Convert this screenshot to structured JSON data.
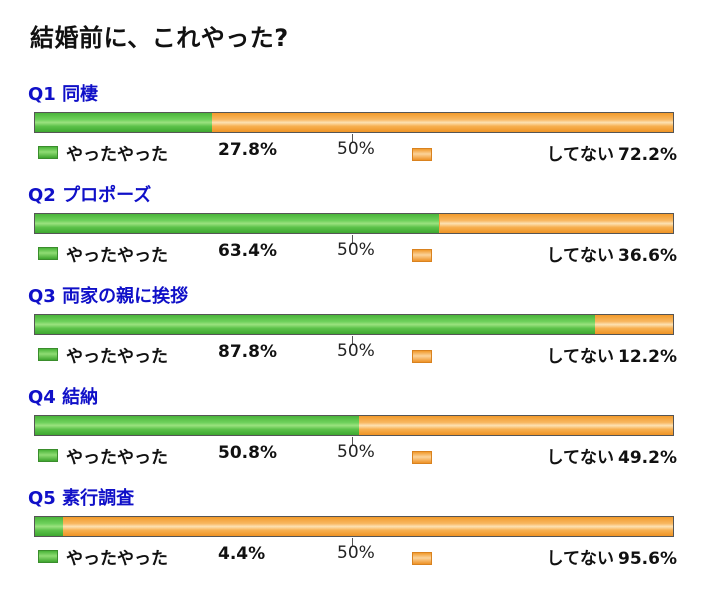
{
  "title": "結婚前に、これやった?",
  "legend": {
    "yes_label": "やったやった",
    "no_label": "してない",
    "mid_label": "50%"
  },
  "colors": {
    "yes": "#5cc24a",
    "no": "#f4a23a",
    "question": "#1010c8"
  },
  "chart_data": {
    "type": "bar",
    "orientation": "horizontal-stacked-100",
    "title": "結婚前に、これやった?",
    "categories": [
      "Q1 同棲",
      "Q2 プロポーズ",
      "Q3 両家の親に挨拶",
      "Q4 結納",
      "Q5 素行調査"
    ],
    "series": [
      {
        "name": "やったやった",
        "values": [
          27.8,
          63.4,
          87.8,
          50.8,
          4.4
        ]
      },
      {
        "name": "してない",
        "values": [
          72.2,
          36.6,
          12.2,
          49.2,
          95.6
        ]
      }
    ],
    "xlim": [
      0,
      100
    ],
    "ticks": [
      "50%"
    ]
  },
  "questions": [
    {
      "label": "Q1 同棲",
      "yes": "27.8%",
      "no": "72.2%"
    },
    {
      "label": "Q2 プロポーズ",
      "yes": "63.4%",
      "no": "36.6%"
    },
    {
      "label": "Q3 両家の親に挨拶",
      "yes": "87.8%",
      "no": "12.2%"
    },
    {
      "label": "Q4 結納",
      "yes": "50.8%",
      "no": "49.2%"
    },
    {
      "label": "Q5 素行調査",
      "yes": "4.4%",
      "no": "95.6%"
    }
  ]
}
